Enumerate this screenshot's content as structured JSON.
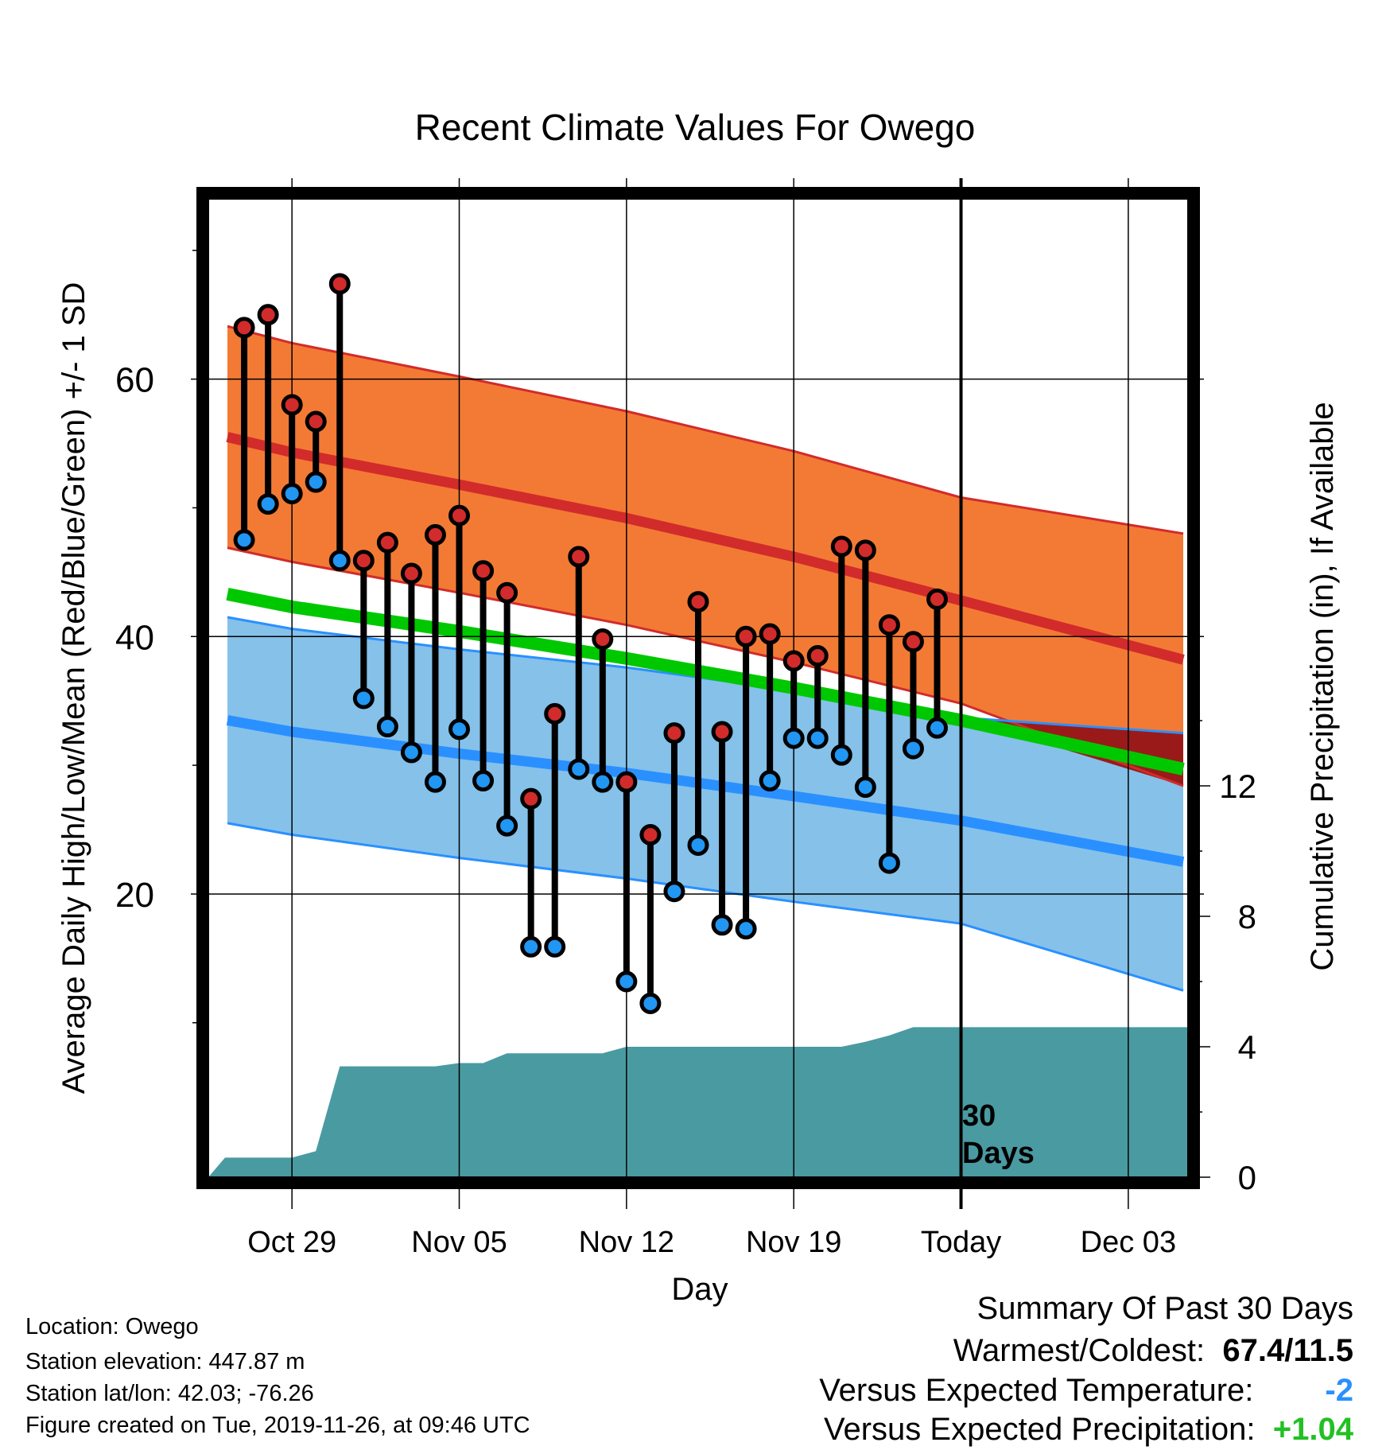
{
  "chart_data": {
    "type": "line",
    "title": "Recent Climate Values For Owego",
    "xlabel": "Day",
    "ylabel": "Average Daily High/Low/Mean (Red/Blue/Green) +/- 1 SD",
    "y2label": "Cumulative Precipitation (in), If Available",
    "x_range_days_from_oct29": [
      -3.5,
      37.5
    ],
    "y_range": [
      -2,
      74
    ],
    "y2_range": [
      0,
      30
    ],
    "x_ticks": [
      {
        "day": 0,
        "label": "Oct 29"
      },
      {
        "day": 7,
        "label": "Nov 05"
      },
      {
        "day": 14,
        "label": "Nov 12"
      },
      {
        "day": 21,
        "label": "Nov 19"
      },
      {
        "day": 28,
        "label": "Today"
      },
      {
        "day": 35,
        "label": "Dec 03"
      }
    ],
    "y_ticks": [
      20,
      40,
      60
    ],
    "y2_ticks": [
      0,
      4,
      8,
      12
    ],
    "grid": true,
    "today_marker": {
      "day": 28,
      "label_line1": "30",
      "label_line2": "Days"
    },
    "normal_high": {
      "mean": [
        [
          -2.7,
          55.5
        ],
        [
          0,
          54.3
        ],
        [
          7,
          51.8
        ],
        [
          14,
          49.2
        ],
        [
          21,
          46.2
        ],
        [
          28,
          42.8
        ],
        [
          37.3,
          38.2
        ]
      ],
      "sd": [
        8.6,
        8.5,
        8.4,
        8.3,
        8.2,
        8.0,
        9.8
      ]
    },
    "normal_low": {
      "mean": [
        [
          -2.7,
          33.5
        ],
        [
          0,
          32.6
        ],
        [
          7,
          30.9
        ],
        [
          14,
          29.4
        ],
        [
          21,
          27.6
        ],
        [
          28,
          25.7
        ],
        [
          37.3,
          22.5
        ]
      ],
      "sd": [
        8.0,
        8.0,
        8.1,
        8.2,
        8.2,
        8.0,
        10.0
      ]
    },
    "normal_mean": [
      [
        -2.7,
        43.3
      ],
      [
        0,
        42.3
      ],
      [
        7,
        40.4
      ],
      [
        14,
        38.3
      ],
      [
        21,
        36.0
      ],
      [
        28,
        33.5
      ],
      [
        37.3,
        29.7
      ]
    ],
    "days": [
      {
        "day": -2,
        "high": 64.0,
        "low": 47.5
      },
      {
        "day": -1,
        "high": 65.0,
        "low": 50.3
      },
      {
        "day": 0,
        "high": 58.0,
        "low": 51.1
      },
      {
        "day": 1,
        "high": 56.7,
        "low": 52.0
      },
      {
        "day": 2,
        "high": 67.4,
        "low": 45.9
      },
      {
        "day": 3,
        "high": 45.9,
        "low": 35.2
      },
      {
        "day": 4,
        "high": 47.3,
        "low": 33.0
      },
      {
        "day": 5,
        "high": 44.9,
        "low": 31.0
      },
      {
        "day": 6,
        "high": 47.9,
        "low": 28.7
      },
      {
        "day": 7,
        "high": 49.4,
        "low": 32.8
      },
      {
        "day": 8,
        "high": 45.1,
        "low": 28.8
      },
      {
        "day": 9,
        "high": 43.4,
        "low": 25.3
      },
      {
        "day": 10,
        "high": 27.4,
        "low": 15.9
      },
      {
        "day": 11,
        "high": 34.0,
        "low": 15.9
      },
      {
        "day": 12,
        "high": 46.2,
        "low": 29.7
      },
      {
        "day": 13,
        "high": 39.8,
        "low": 28.7
      },
      {
        "day": 14,
        "high": 28.7,
        "low": 13.2
      },
      {
        "day": 15,
        "high": 24.6,
        "low": 11.5
      },
      {
        "day": 16,
        "high": 32.5,
        "low": 20.2
      },
      {
        "day": 17,
        "high": 42.7,
        "low": 23.8
      },
      {
        "day": 18,
        "high": 32.6,
        "low": 17.6
      },
      {
        "day": 19,
        "high": 40.0,
        "low": 17.3
      },
      {
        "day": 20,
        "high": 40.2,
        "low": 28.8
      },
      {
        "day": 21,
        "high": 38.1,
        "low": 32.1
      },
      {
        "day": 22,
        "high": 38.5,
        "low": 32.1
      },
      {
        "day": 23,
        "high": 47.0,
        "low": 30.8
      },
      {
        "day": 24,
        "high": 46.7,
        "low": 28.3
      },
      {
        "day": 25,
        "high": 40.9,
        "low": 22.4
      },
      {
        "day": 26,
        "high": 39.6,
        "low": 31.3
      },
      {
        "day": 27,
        "high": 42.9,
        "low": 32.9
      }
    ],
    "cumulative_precip": [
      [
        -3.5,
        0
      ],
      [
        -2.8,
        0.6
      ],
      [
        0,
        0.6
      ],
      [
        1,
        0.8
      ],
      [
        2,
        3.4
      ],
      [
        6,
        3.4
      ],
      [
        7,
        3.5
      ],
      [
        8,
        3.5
      ],
      [
        9,
        3.8
      ],
      [
        13,
        3.8
      ],
      [
        14,
        4.0
      ],
      [
        23,
        4.0
      ],
      [
        24,
        4.15
      ],
      [
        25,
        4.35
      ],
      [
        26,
        4.6
      ],
      [
        37.5,
        4.6
      ]
    ],
    "colors": {
      "high_band": "#f37a34",
      "high_line": "#d22b2b",
      "overlap_band": "#9a1a1a",
      "low_band": "#85c1e9",
      "low_line": "#2a90ff",
      "mean_line": "#00c800",
      "precip": "#4a9aa2",
      "high_marker": "#d22b2b",
      "low_marker": "#2196f3"
    }
  },
  "info": {
    "location": "Location: Owego",
    "elevation": "Station elevation: 447.87 m",
    "latlon": "Station lat/lon: 42.03; -76.26",
    "created": "Figure created on Tue, 2019-11-26, at 09:46 UTC"
  },
  "summary": {
    "title": "Summary Of Past 30 Days",
    "warmest_label": "Warmest/Coldest:",
    "warmest_value": "67.4/11.5",
    "temp_label": "Versus Expected Temperature:",
    "temp_value": "-2",
    "temp_color": "#2a90ff",
    "precip_label": "Versus Expected Precipitation:",
    "precip_value": "+1.04",
    "precip_color": "#22c022"
  }
}
